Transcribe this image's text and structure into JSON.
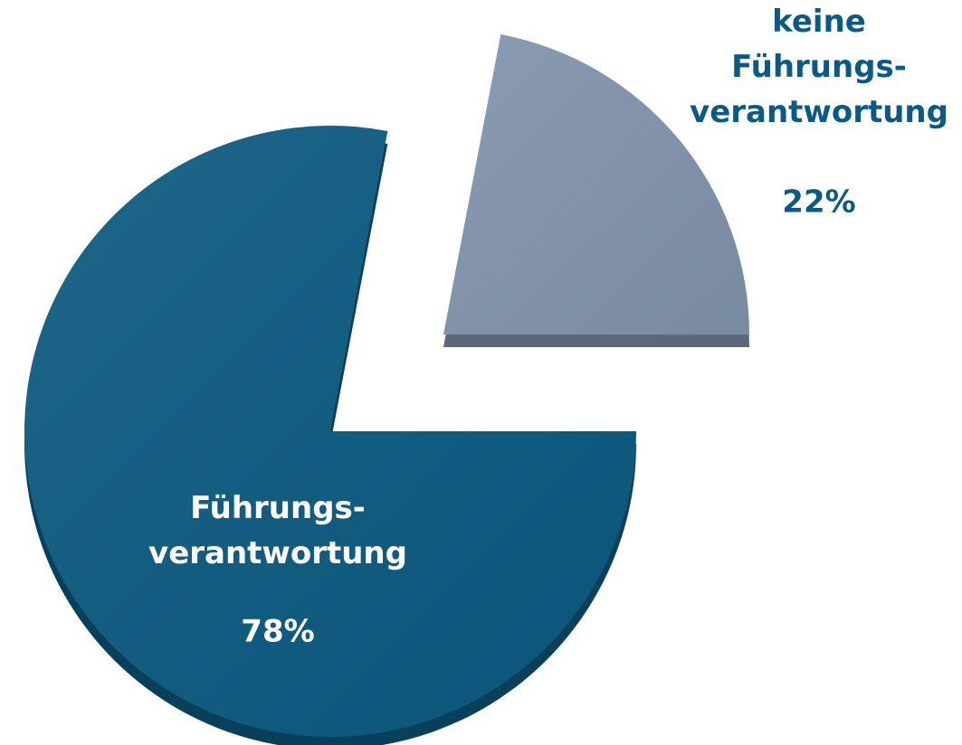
{
  "chart_data": {
    "type": "pie",
    "categories": [
      "keine\nFührungs-\nverantwortung",
      "Führungs-\nverantwortung"
    ],
    "values": [
      22,
      78
    ],
    "value_labels": [
      "22%",
      "78%"
    ],
    "colors": [
      "#8194ad",
      "#0b5a81"
    ]
  }
}
